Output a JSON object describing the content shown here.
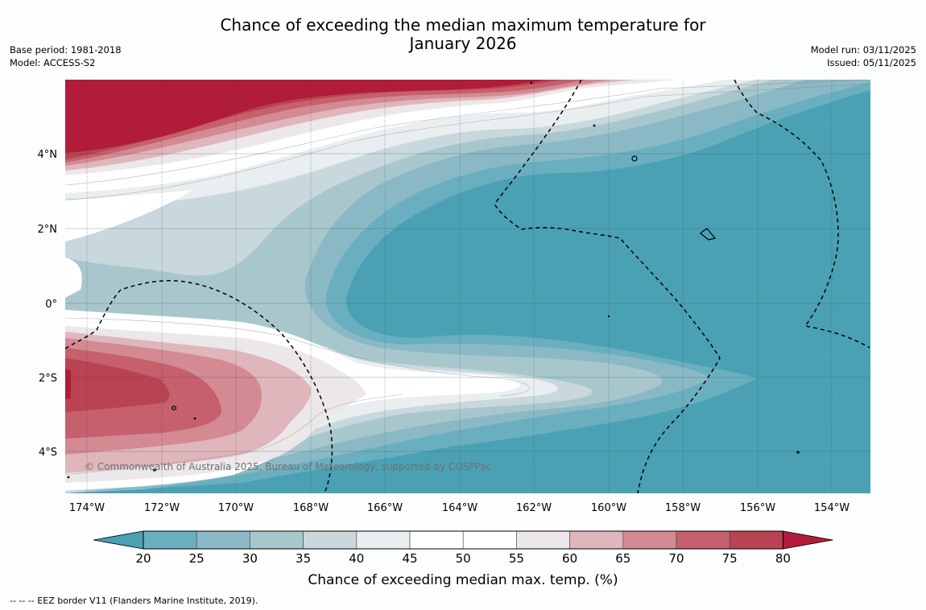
{
  "header": {
    "title_line1": "Chance of exceeding the median maximum temperature for",
    "title_line2": "January 2026",
    "base_period": "Base period: 1981-2018",
    "model": "Model: ACCESS-S2",
    "model_run": "Model run: 03/11/2025",
    "issued": "Issued: 05/11/2025"
  },
  "map": {
    "lon_labels": [
      "174°W",
      "172°W",
      "170°W",
      "168°W",
      "166°W",
      "164°W",
      "162°W",
      "160°W",
      "158°W",
      "156°W",
      "154°W"
    ],
    "lat_labels": [
      "4°N",
      "2°N",
      "0°",
      "2°S",
      "4°S"
    ],
    "copyright": "© Commonwealth of Australia 2025, Bureau of Meteorology, supported by COSPPac"
  },
  "colorbar": {
    "ticks": [
      "20",
      "25",
      "30",
      "35",
      "40",
      "45",
      "50",
      "55",
      "60",
      "65",
      "70",
      "75",
      "80"
    ],
    "label": "Chance of exceeding median max. temp. (%)",
    "colors": [
      "#4aa1b4",
      "#6aafbf",
      "#8ab9c5",
      "#a8c7cc",
      "#c9d8dc",
      "#e9eef0",
      "#ffffff",
      "#ffffff",
      "#ece7e8",
      "#dfb6bb",
      "#d38a93",
      "#c5606c",
      "#b94352",
      "#b01c3a"
    ]
  },
  "footer": {
    "legend": "--  --  -- EEZ border V11 (Flanders Marine Institute, 2019)."
  }
}
